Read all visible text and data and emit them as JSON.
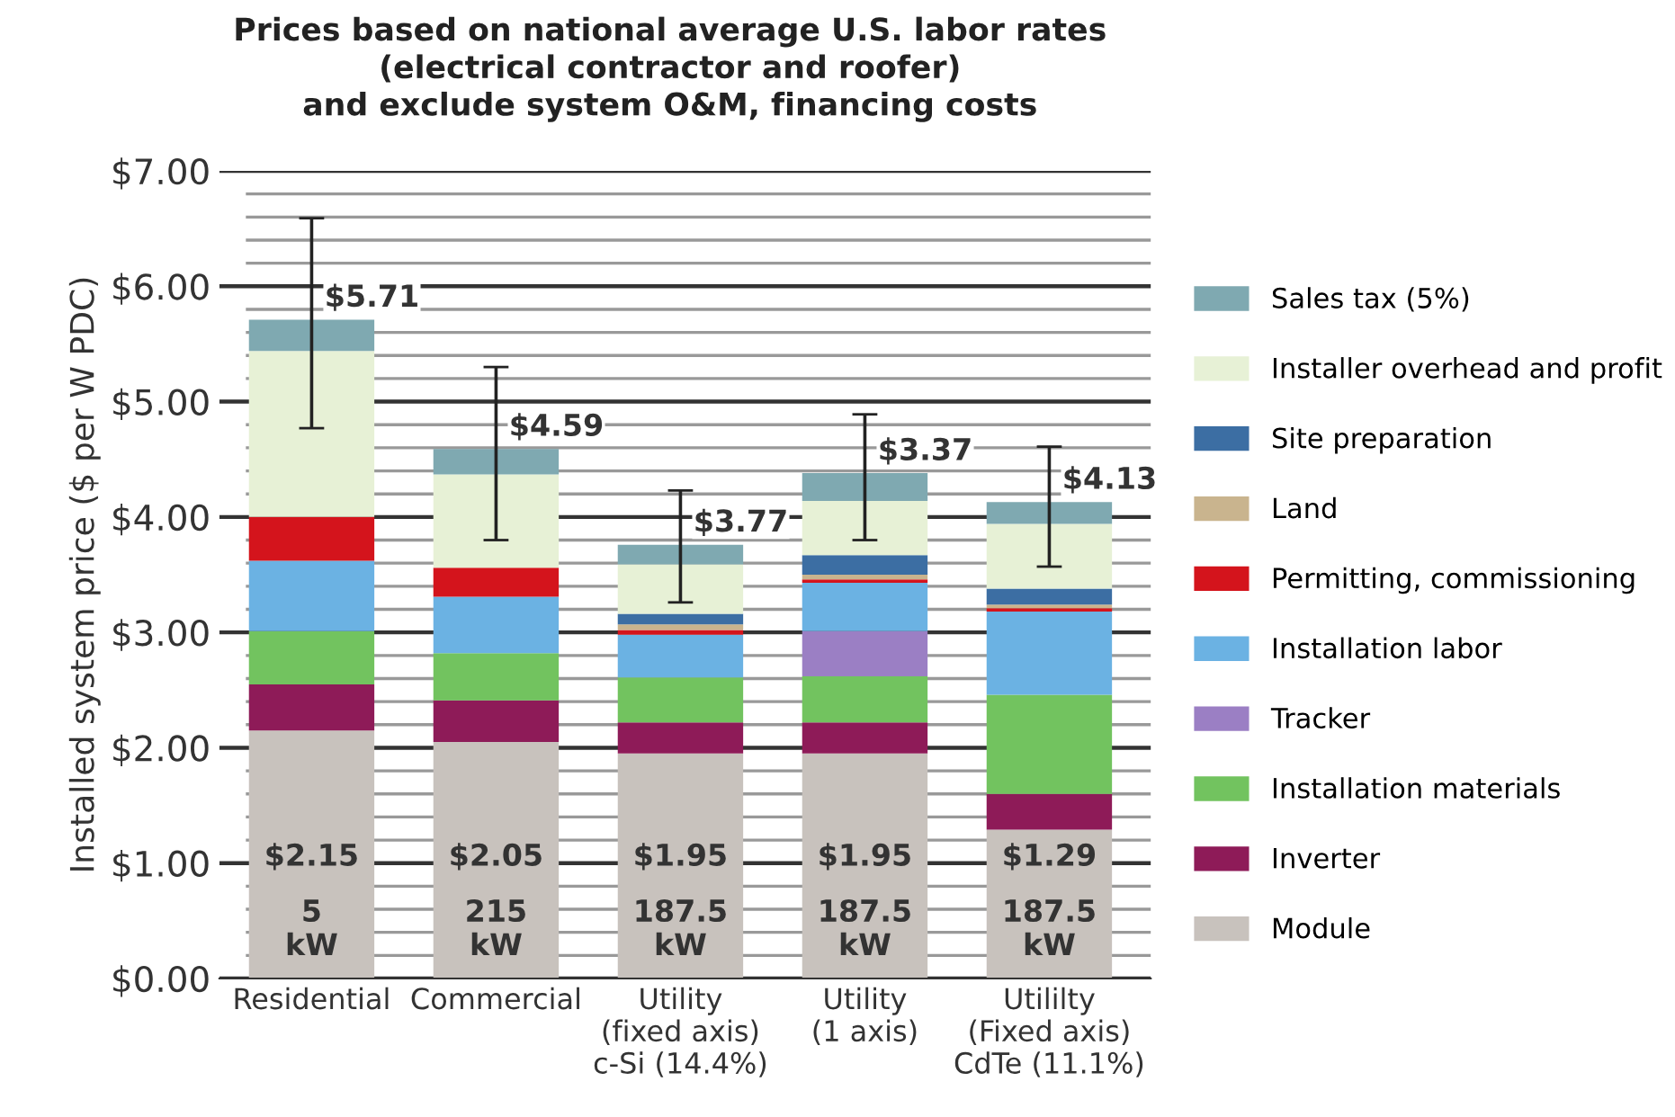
{
  "chart_data": {
    "type": "bar",
    "stacked": true,
    "title": "Prices based on national average U.S. labor rates\n(electrical contractor and roofer)\nand exclude system O&M, financing costs",
    "ylabel": "Installed system price ($ per W PDC)",
    "categories": [
      "Residential",
      "Commercial",
      "Utility\n(fixed axis)\nc-Si (14.4%)",
      "Utility\n(1 axis)",
      "Utililty\n(Fixed axis)\nCdTe (11.1%)"
    ],
    "series": [
      {
        "name": "Module",
        "color": "#c8c2bd",
        "values": [
          2.15,
          2.05,
          1.95,
          1.95,
          1.29
        ],
        "value_labels": [
          "$2.15",
          "$2.05",
          "$1.95",
          "$1.95",
          "$1.29"
        ]
      },
      {
        "name": "Inverter",
        "color": "#8e1b58",
        "values": [
          0.4,
          0.36,
          0.27,
          0.27,
          0.31
        ]
      },
      {
        "name": "Installation materials",
        "color": "#72c35f",
        "values": [
          0.46,
          0.41,
          0.39,
          0.4,
          0.86
        ]
      },
      {
        "name": "Tracker",
        "color": "#9b7fc4",
        "values": [
          0,
          0,
          0,
          0.39,
          0
        ]
      },
      {
        "name": "Installation labor",
        "color": "#6bb2e3",
        "values": [
          0.61,
          0.49,
          0.37,
          0.42,
          0.72
        ]
      },
      {
        "name": "Permitting, commissioning",
        "color": "#d4141c",
        "values": [
          0.38,
          0.25,
          0.04,
          0.03,
          0.03
        ]
      },
      {
        "name": "Land",
        "color": "#c9b48e",
        "values": [
          0,
          0,
          0.05,
          0.04,
          0.03
        ]
      },
      {
        "name": "Site preparation",
        "color": "#3c6ea3",
        "values": [
          0,
          0,
          0.09,
          0.17,
          0.14
        ]
      },
      {
        "name": "Installer overhead and profit",
        "color": "#e7f1d6",
        "values": [
          1.44,
          0.81,
          0.43,
          0.47,
          0.56
        ]
      },
      {
        "name": "Sales tax (5%)",
        "color": "#7fa9b1",
        "values": [
          0.27,
          0.22,
          0.17,
          0.24,
          0.19
        ],
        "errors": [
          [
            4.77,
            6.59
          ],
          [
            3.8,
            5.3
          ],
          [
            3.26,
            4.23
          ],
          [
            3.8,
            4.89
          ],
          [
            3.57,
            4.61
          ]
        ]
      }
    ],
    "annotations": [
      "$5.71",
      "$4.59",
      "$3.77",
      "$3.37",
      "$4.13",
      "5\nkW",
      "215\nkW",
      "187.5\nkW",
      "187.5\nkW",
      "187.5\nkW"
    ],
    "ylim": [
      0,
      7
    ],
    "yticks": [
      {
        "value": 0,
        "label": "$0.00"
      },
      {
        "value": 0.2,
        "label": null
      },
      {
        "value": 0.4,
        "label": null
      },
      {
        "value": 0.6,
        "label": null
      },
      {
        "value": 0.8,
        "label": null
      },
      {
        "value": 1,
        "label": "$1.00"
      },
      {
        "value": 1.2,
        "label": null
      },
      {
        "value": 1.4,
        "label": null
      },
      {
        "value": 1.6,
        "label": null
      },
      {
        "value": 1.8,
        "label": null
      },
      {
        "value": 2,
        "label": "$2.00"
      },
      {
        "value": 2.2,
        "label": null
      },
      {
        "value": 2.4,
        "label": null
      },
      {
        "value": 2.6,
        "label": null
      },
      {
        "value": 2.8,
        "label": null
      },
      {
        "value": 3,
        "label": "$3.00"
      },
      {
        "value": 3.2,
        "label": null
      },
      {
        "value": 3.4,
        "label": null
      },
      {
        "value": 3.6,
        "label": null
      },
      {
        "value": 3.8,
        "label": null
      },
      {
        "value": 4,
        "label": "$4.00"
      },
      {
        "value": 4.2,
        "label": null
      },
      {
        "value": 4.4,
        "label": null
      },
      {
        "value": 4.6,
        "label": null
      },
      {
        "value": 4.8,
        "label": null
      },
      {
        "value": 5,
        "label": "$5.00"
      },
      {
        "value": 5.2,
        "label": null
      },
      {
        "value": 5.4,
        "label": null
      },
      {
        "value": 5.6,
        "label": null
      },
      {
        "value": 5.8,
        "label": null
      },
      {
        "value": 6,
        "label": "$6.00"
      },
      {
        "value": 6.2,
        "label": null
      },
      {
        "value": 6.4,
        "label": null
      },
      {
        "value": 6.6,
        "label": null
      },
      {
        "value": 6.8,
        "label": null
      },
      {
        "value": 7,
        "label": "$7.00"
      }
    ],
    "grid": "y",
    "legend": "right"
  }
}
